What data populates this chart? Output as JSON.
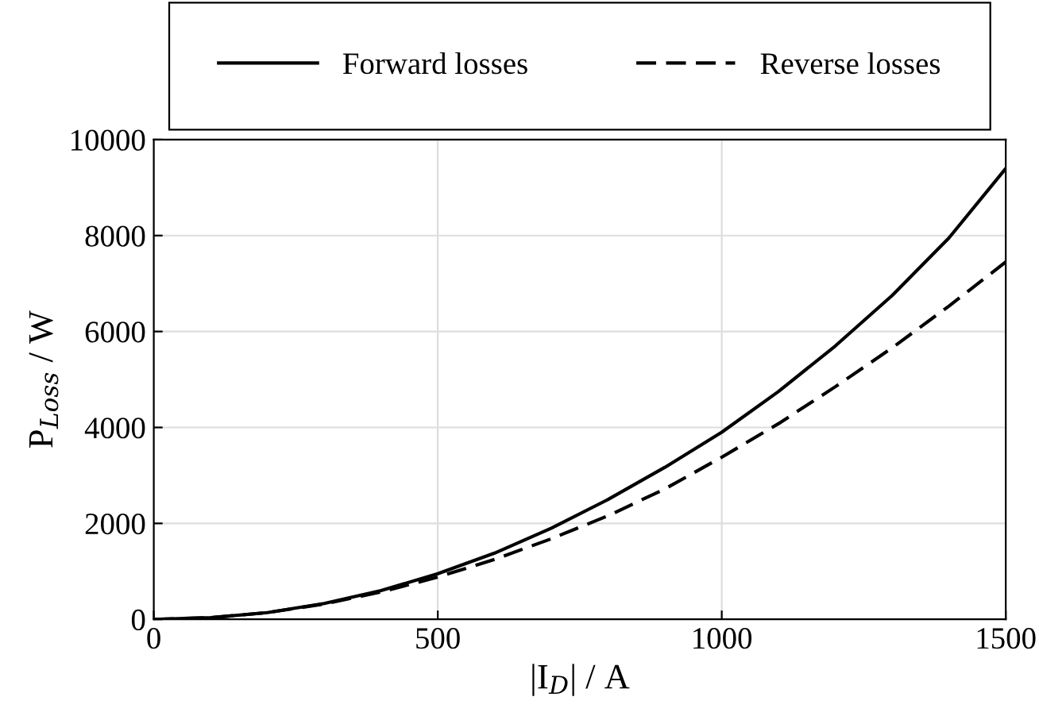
{
  "chart_data": {
    "type": "line",
    "xlabel": "|I$_{D}$| / A",
    "ylabel": "P$_{Loss}$ / W",
    "x": [
      0,
      100,
      200,
      300,
      400,
      500,
      600,
      700,
      800,
      900,
      1000,
      1100,
      1200,
      1300,
      1400,
      1500
    ],
    "series": [
      {
        "name": "Forward losses",
        "color": "#000000",
        "line_style": "solid",
        "values": [
          0,
          35,
          140,
          330,
          600,
          950,
          1380,
          1900,
          2500,
          3170,
          3900,
          4750,
          5700,
          6750,
          7950,
          9400
        ]
      },
      {
        "name": "Reverse losses",
        "color": "#000000",
        "line_style": "dashed",
        "values": [
          0,
          35,
          140,
          320,
          570,
          880,
          1250,
          1680,
          2160,
          2720,
          3380,
          4080,
          4850,
          5660,
          6530,
          7450
        ]
      }
    ],
    "xlim": [
      0,
      1500
    ],
    "xticks": [
      0,
      500,
      1000,
      1500
    ],
    "ylim": [
      0,
      10000
    ],
    "yticks": [
      0,
      2000,
      4000,
      6000,
      8000,
      10000
    ],
    "grid": true,
    "legend": "top",
    "marker": "none"
  }
}
